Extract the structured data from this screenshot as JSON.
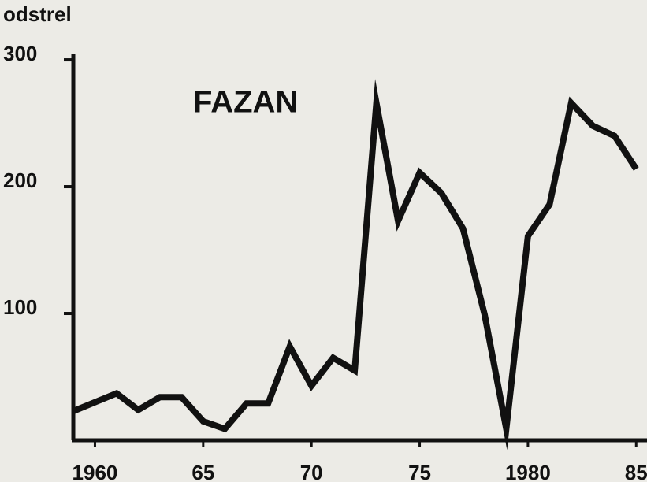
{
  "chart_data": {
    "type": "line",
    "title": "FAZAN",
    "ylabel": "odstrel",
    "x": [
      1959,
      1960,
      1961,
      1962,
      1963,
      1964,
      1965,
      1966,
      1967,
      1968,
      1969,
      1970,
      1971,
      1972,
      1973,
      1974,
      1975,
      1976,
      1977,
      1978,
      1979,
      1980,
      1981,
      1982,
      1983,
      1984,
      1985
    ],
    "series": [
      {
        "name": "FAZAN",
        "color": "#111111",
        "values": [
          23,
          30,
          37,
          24,
          34,
          34,
          15,
          9,
          29,
          29,
          74,
          43,
          65,
          55,
          266,
          173,
          211,
          195,
          167,
          99,
          9,
          161,
          186,
          266,
          248,
          240,
          214
        ]
      }
    ],
    "xlim": [
      1959,
      1985.5
    ],
    "xticks": [
      1960,
      {
        "value": 1965,
        "label": "65"
      },
      {
        "value": 1970,
        "label": "70"
      },
      {
        "value": 1975,
        "label": "75"
      },
      1980,
      {
        "value": 1985,
        "label": "85"
      }
    ],
    "ylim": [
      0,
      305
    ],
    "yticks": [
      100,
      200,
      300
    ],
    "grid": false
  }
}
